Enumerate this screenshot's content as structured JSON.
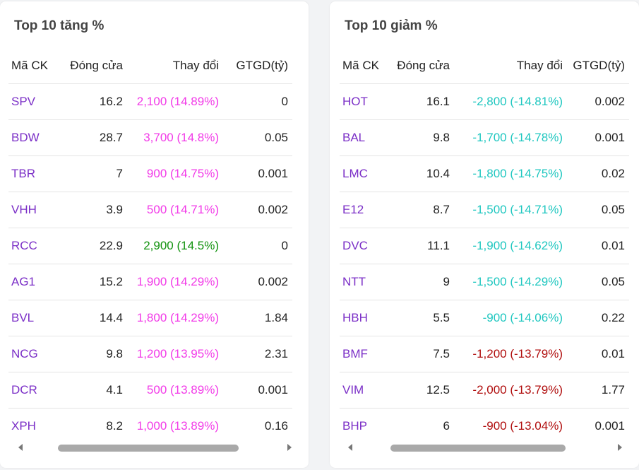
{
  "panels": [
    {
      "title": "Top 10 tăng %",
      "headers": [
        "Mã CK",
        "Đóng cửa",
        "Thay đổi",
        "GTGD(tỷ)"
      ],
      "rows": [
        {
          "symbol": "SPV",
          "close": "16.2",
          "change": "2,100 (14.89%)",
          "tone": "up",
          "value": "0"
        },
        {
          "symbol": "BDW",
          "close": "28.7",
          "change": "3,700 (14.8%)",
          "tone": "up",
          "value": "0.05"
        },
        {
          "symbol": "TBR",
          "close": "7",
          "change": "900 (14.75%)",
          "tone": "up",
          "value": "0.001"
        },
        {
          "symbol": "VHH",
          "close": "3.9",
          "change": "500 (14.71%)",
          "tone": "up",
          "value": "0.002"
        },
        {
          "symbol": "RCC",
          "close": "22.9",
          "change": "2,900 (14.5%)",
          "tone": "ref",
          "value": "0"
        },
        {
          "symbol": "AG1",
          "close": "15.2",
          "change": "1,900 (14.29%)",
          "tone": "up",
          "value": "0.002"
        },
        {
          "symbol": "BVL",
          "close": "14.4",
          "change": "1,800 (14.29%)",
          "tone": "up",
          "value": "1.84"
        },
        {
          "symbol": "NCG",
          "close": "9.8",
          "change": "1,200 (13.95%)",
          "tone": "up",
          "value": "2.31"
        },
        {
          "symbol": "DCR",
          "close": "4.1",
          "change": "500 (13.89%)",
          "tone": "up",
          "value": "0.001"
        },
        {
          "symbol": "XPH",
          "close": "8.2",
          "change": "1,000 (13.89%)",
          "tone": "up",
          "value": "0.16"
        }
      ]
    },
    {
      "title": "Top 10 giảm %",
      "headers": [
        "Mã CK",
        "Đóng cửa",
        "Thay đổi",
        "GTGD(tỷ)"
      ],
      "rows": [
        {
          "symbol": "HOT",
          "close": "16.1",
          "change": "-2,800 (-14.81%)",
          "tone": "down",
          "value": "0.002"
        },
        {
          "symbol": "BAL",
          "close": "9.8",
          "change": "-1,700 (-14.78%)",
          "tone": "down",
          "value": "0.001"
        },
        {
          "symbol": "LMC",
          "close": "10.4",
          "change": "-1,800 (-14.75%)",
          "tone": "down",
          "value": "0.02"
        },
        {
          "symbol": "E12",
          "close": "8.7",
          "change": "-1,500 (-14.71%)",
          "tone": "down",
          "value": "0.05"
        },
        {
          "symbol": "DVC",
          "close": "11.1",
          "change": "-1,900 (-14.62%)",
          "tone": "down",
          "value": "0.01"
        },
        {
          "symbol": "NTT",
          "close": "9",
          "change": "-1,500 (-14.29%)",
          "tone": "down",
          "value": "0.05"
        },
        {
          "symbol": "HBH",
          "close": "5.5",
          "change": "-900 (-14.06%)",
          "tone": "down",
          "value": "0.22"
        },
        {
          "symbol": "BMF",
          "close": "7.5",
          "change": "-1,200 (-13.79%)",
          "tone": "fall",
          "value": "0.01"
        },
        {
          "symbol": "VIM",
          "close": "12.5",
          "change": "-2,000 (-13.79%)",
          "tone": "fall",
          "value": "1.77"
        },
        {
          "symbol": "BHP",
          "close": "6",
          "change": "-900 (-13.04%)",
          "tone": "fall",
          "value": "0.001"
        }
      ]
    }
  ],
  "scroll_icons": [
    "scroll-left-arrow-icon",
    "scroll-right-arrow-icon"
  ]
}
